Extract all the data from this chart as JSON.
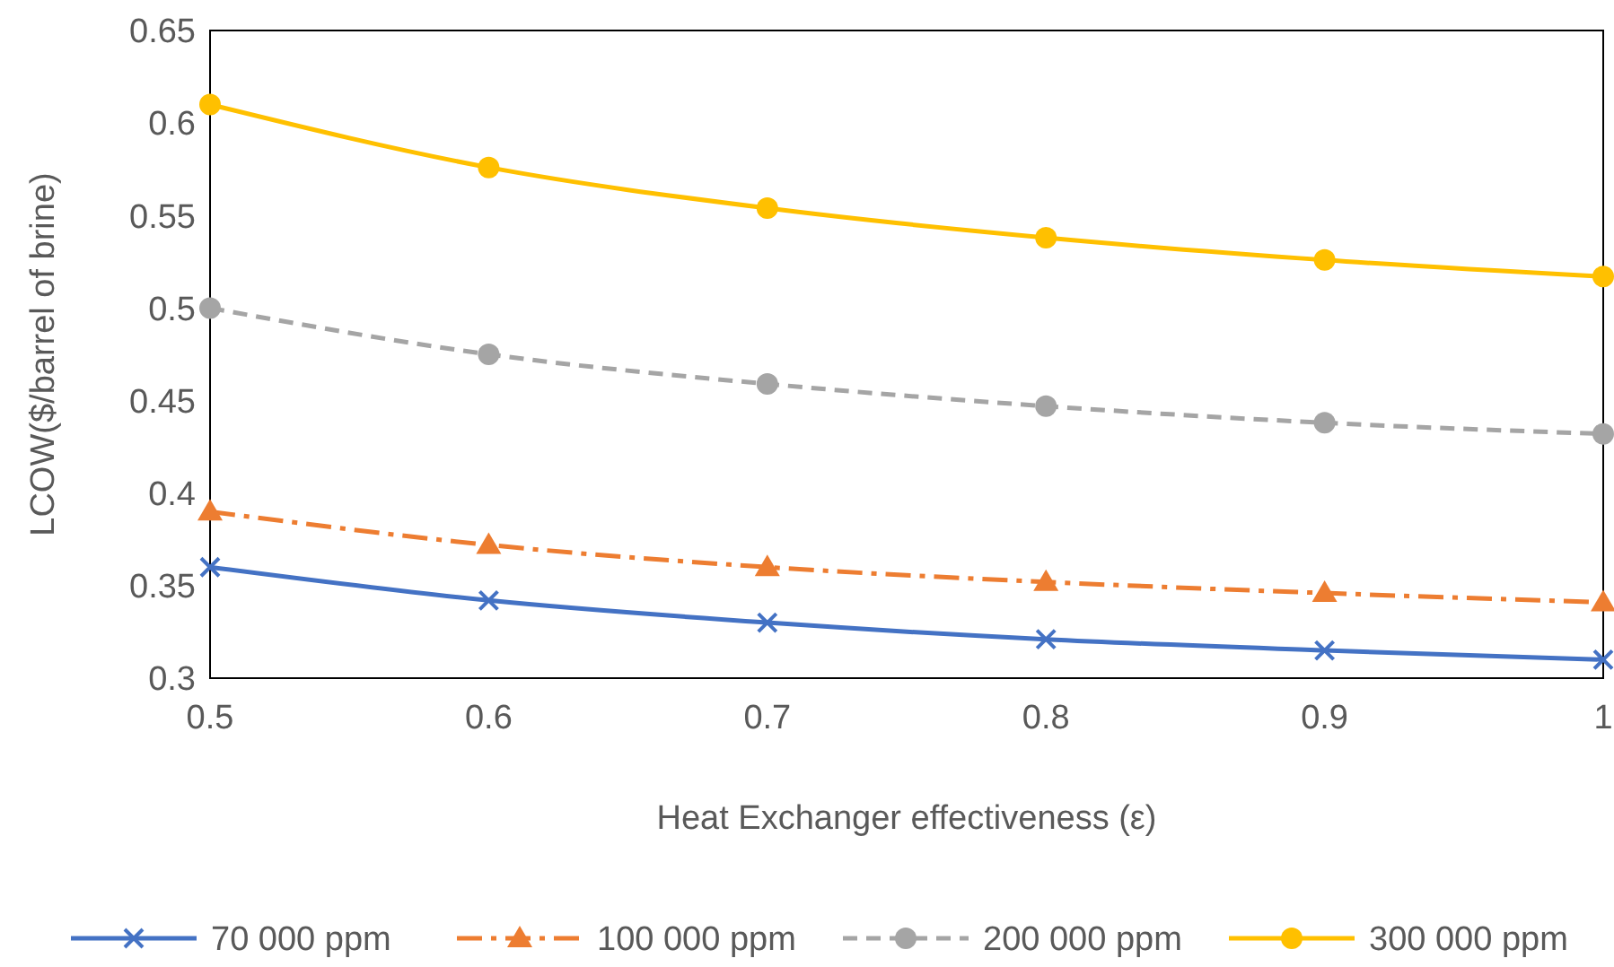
{
  "chart_data": {
    "type": "line",
    "xlabel": "Heat Exchanger effectiveness (ε)",
    "ylabel": "LCOW($/barrel of brine)",
    "x": [
      0.5,
      0.6,
      0.7,
      0.8,
      0.9,
      1
    ],
    "xlim": [
      0.5,
      1
    ],
    "xticks": [
      0.5,
      0.6,
      0.7,
      0.8,
      0.9,
      1
    ],
    "ylim": [
      0.3,
      0.65
    ],
    "yticks": [
      0.3,
      0.35,
      0.4,
      0.45,
      0.5,
      0.55,
      0.6,
      0.65
    ],
    "legend": "bottom",
    "series": [
      {
        "name": "70 000 ppm",
        "color": "#4472c4",
        "marker": "cross",
        "line_style": "solid",
        "values": [
          0.36,
          0.342,
          0.33,
          0.321,
          0.315,
          0.31
        ]
      },
      {
        "name": "100 000 ppm",
        "color": "#ed7d31",
        "marker": "triangle",
        "line_style": "dashdot",
        "values": [
          0.39,
          0.372,
          0.36,
          0.352,
          0.346,
          0.341
        ]
      },
      {
        "name": "200 000 ppm",
        "color": "#a5a5a5",
        "marker": "circle",
        "line_style": "dashed",
        "values": [
          0.5,
          0.475,
          0.459,
          0.447,
          0.438,
          0.432
        ]
      },
      {
        "name": "300 000 ppm",
        "color": "#ffc000",
        "marker": "circle",
        "line_style": "solid",
        "values": [
          0.61,
          0.576,
          0.554,
          0.538,
          0.526,
          0.517
        ]
      }
    ]
  }
}
